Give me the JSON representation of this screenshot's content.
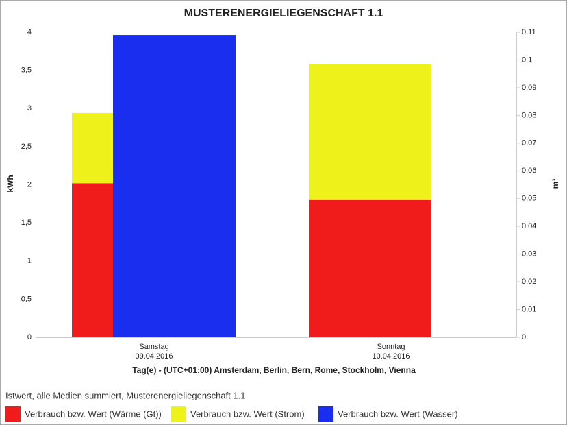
{
  "chart_data": {
    "type": "bar",
    "title": "MUSTERENERGIELIEGENSCHAFT 1.1",
    "x_label": "Tag(e) - (UTC+01:00) Amsterdam, Berlin, Bern, Rome, Stockholm, Vienna",
    "y_label": "kWh",
    "y2_label": "m³",
    "legend_title": "Istwert, alle Medien summiert, Musterenergieliegenschaft 1.1",
    "categories": [
      [
        "Samstag",
        "09.04.2016"
      ],
      [
        "Sonntag",
        "10.04.2016"
      ]
    ],
    "stacked": true,
    "series": [
      {
        "name": "Verbrauch bzw. Wert (Wärme (Gt))",
        "color": "#f01c1c",
        "values": [
          2.02,
          1.8
        ]
      },
      {
        "name": "Verbrauch bzw. Wert (Strom)",
        "color": "#eef21a",
        "values": [
          0.92,
          1.78
        ]
      },
      {
        "name": "Verbrauch bzw. Wert (Wasser)",
        "color": "#1a2ef0",
        "axis": "y2",
        "values": [
          0.109,
          0
        ]
      }
    ],
    "ylim": [
      0,
      4
    ],
    "yticks": [
      0,
      {
        "value": 0.5,
        "label": "0,5"
      },
      1,
      {
        "value": 1.5,
        "label": "1,5"
      },
      2,
      {
        "value": 2.5,
        "label": "2,5"
      },
      3,
      {
        "value": 3.5,
        "label": "3,5"
      },
      4
    ],
    "y2lim": [
      0,
      0.11
    ],
    "y2ticks": [
      0,
      {
        "value": 0.01,
        "label": "0,01"
      },
      {
        "value": 0.02,
        "label": "0,02"
      },
      {
        "value": 0.03,
        "label": "0,03"
      },
      {
        "value": 0.04,
        "label": "0,04"
      },
      {
        "value": 0.05,
        "label": "0,05"
      },
      {
        "value": 0.06,
        "label": "0,06"
      },
      {
        "value": 0.07,
        "label": "0,07"
      },
      {
        "value": 0.08,
        "label": "0,08"
      },
      {
        "value": 0.09,
        "label": "0,09"
      },
      {
        "value": 0.1,
        "label": "0,1"
      },
      {
        "value": 0.11,
        "label": "0,11"
      }
    ],
    "grid": false
  }
}
